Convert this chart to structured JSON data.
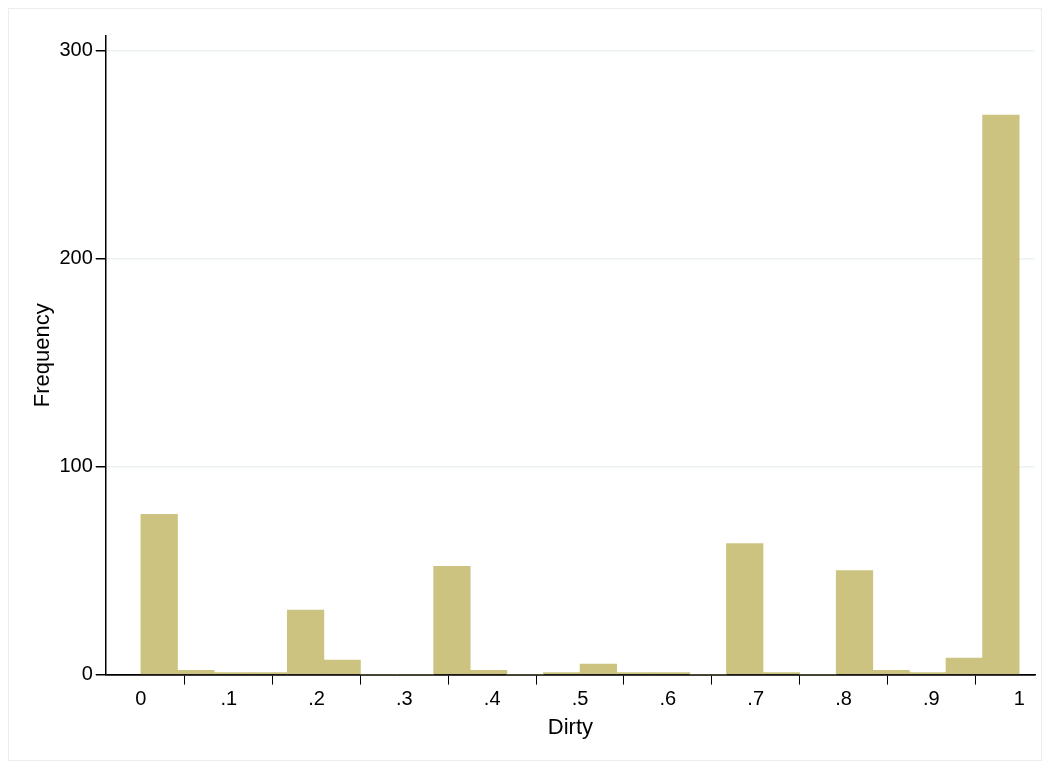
{
  "chart_data": {
    "type": "histogram",
    "xlabel": "Dirty",
    "ylabel": "Frequency",
    "bins": [
      0,
      0.0417,
      0.0833,
      0.125,
      0.1667,
      0.2083,
      0.25,
      0.2917,
      0.3333,
      0.375,
      0.4167,
      0.4583,
      0.5,
      0.5417,
      0.5833,
      0.625,
      0.6667,
      0.7083,
      0.75,
      0.7917,
      0.8333,
      0.875,
      0.9167,
      0.9583,
      1
    ],
    "values": [
      77,
      2,
      1,
      1,
      31,
      7,
      0,
      0,
      52,
      2,
      0,
      1,
      5,
      1,
      1,
      0,
      63,
      1,
      0,
      50,
      2,
      1,
      8,
      269
    ],
    "color": "#cbc37f",
    "xlim": [
      -0.04,
      1.018
    ],
    "ylim": [
      0,
      307
    ],
    "xticks": [
      0,
      {
        "value": 0.1,
        "label": ".1"
      },
      {
        "value": 0.2,
        "label": ".2"
      },
      {
        "value": 0.3,
        "label": ".3"
      },
      {
        "value": 0.4,
        "label": ".4"
      },
      {
        "value": 0.5,
        "label": ".5"
      },
      {
        "value": 0.6,
        "label": ".6"
      },
      {
        "value": 0.7,
        "label": ".7"
      },
      {
        "value": 0.8,
        "label": ".8"
      },
      {
        "value": 0.9,
        "label": ".9"
      },
      1
    ],
    "yticks": [
      0,
      100,
      200,
      300
    ],
    "grid": "y",
    "legend": false
  }
}
